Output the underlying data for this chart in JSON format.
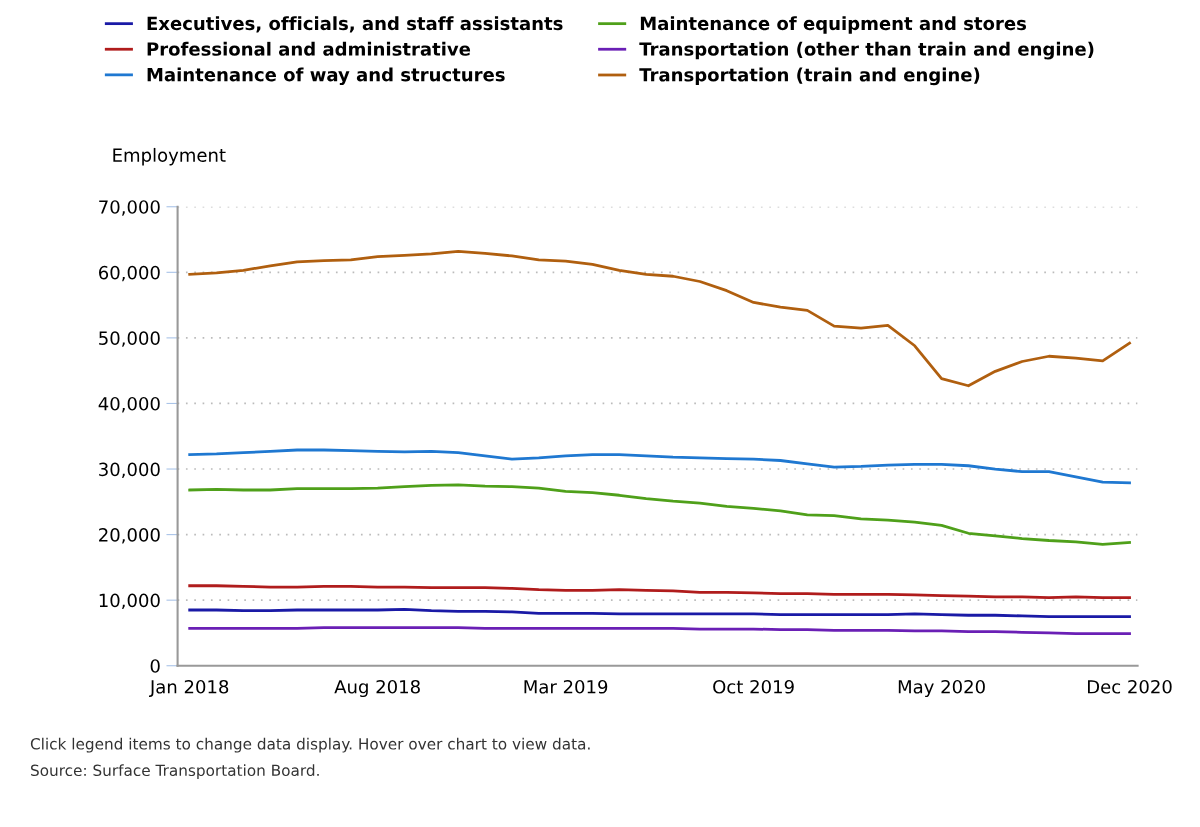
{
  "chart_data": {
    "type": "line",
    "ylabel": "Employment",
    "categories": [
      "Jan 2018",
      null,
      null,
      null,
      null,
      null,
      null,
      "Aug 2018",
      null,
      null,
      null,
      null,
      null,
      null,
      "Mar 2019",
      null,
      null,
      null,
      null,
      null,
      null,
      "Oct 2019",
      null,
      null,
      null,
      null,
      null,
      null,
      "May 2020",
      null,
      null,
      null,
      null,
      null,
      null,
      "Dec 2020"
    ],
    "series": [
      {
        "name": "Executives, officials, and staff assistants",
        "color": "#1a1aa6",
        "values": [
          8500,
          8500,
          8400,
          8400,
          8500,
          8500,
          8500,
          8500,
          8600,
          8400,
          8300,
          8300,
          8200,
          8000,
          8000,
          8000,
          7900,
          7900,
          7900,
          7900,
          7900,
          7900,
          7800,
          7800,
          7800,
          7800,
          7800,
          7900,
          7800,
          7700,
          7700,
          7600,
          7500,
          7500,
          7500,
          7500
        ]
      },
      {
        "name": "Professional and administrative",
        "color": "#b01c1c",
        "values": [
          12200,
          12200,
          12100,
          12000,
          12000,
          12100,
          12100,
          12000,
          12000,
          11900,
          11900,
          11900,
          11800,
          11600,
          11500,
          11500,
          11600,
          11500,
          11400,
          11200,
          11200,
          11100,
          11000,
          11000,
          10900,
          10900,
          10900,
          10800,
          10700,
          10600,
          10500,
          10500,
          10400,
          10500,
          10400,
          10400
        ]
      },
      {
        "name": "Maintenance of way and structures",
        "color": "#1f78d1",
        "values": [
          32200,
          32300,
          32500,
          32700,
          32900,
          32900,
          32800,
          32700,
          32600,
          32700,
          32500,
          32000,
          31500,
          31700,
          32000,
          32200,
          32200,
          32000,
          31800,
          31700,
          31600,
          31500,
          31300,
          30800,
          30300,
          30400,
          30600,
          30700,
          30700,
          30500,
          30000,
          29600,
          29600,
          28800,
          28000,
          27900
        ]
      },
      {
        "name": "Maintenance of equipment and stores",
        "color": "#4fa01a",
        "values": [
          26800,
          26900,
          26800,
          26800,
          27000,
          27000,
          27000,
          27100,
          27300,
          27500,
          27600,
          27400,
          27300,
          27100,
          26600,
          26400,
          26000,
          25500,
          25100,
          24800,
          24300,
          24000,
          23600,
          23000,
          22900,
          22400,
          22200,
          21900,
          21400,
          20200,
          19800,
          19400,
          19100,
          18900,
          18500,
          18800
        ]
      },
      {
        "name": "Transportation (other than train and engine)",
        "color": "#6a1fb5",
        "values": [
          5700,
          5700,
          5700,
          5700,
          5700,
          5800,
          5800,
          5800,
          5800,
          5800,
          5800,
          5700,
          5700,
          5700,
          5700,
          5700,
          5700,
          5700,
          5700,
          5600,
          5600,
          5600,
          5500,
          5500,
          5400,
          5400,
          5400,
          5300,
          5300,
          5200,
          5200,
          5100,
          5000,
          4900,
          4900,
          4900
        ]
      },
      {
        "name": "Transportation (train and engine)",
        "color": "#b05f0f",
        "values": [
          59700,
          59900,
          60300,
          61000,
          61600,
          61800,
          61900,
          62400,
          62600,
          62800,
          63200,
          62900,
          62500,
          61900,
          61700,
          61200,
          60300,
          59700,
          59400,
          58600,
          57200,
          55400,
          54700,
          54200,
          51800,
          51500,
          51900,
          48800,
          43800,
          42700,
          44900,
          46400,
          47200,
          46900,
          46500,
          49200
        ]
      }
    ],
    "ylim": [
      0,
      70000
    ],
    "yticks": [
      {
        "value": 0,
        "label": "0"
      },
      {
        "value": 10000,
        "label": "10,000"
      },
      {
        "value": 20000,
        "label": "20,000"
      },
      {
        "value": 30000,
        "label": "30,000"
      },
      {
        "value": 40000,
        "label": "40,000"
      },
      {
        "value": 50000,
        "label": "50,000"
      },
      {
        "value": 60000,
        "label": "60,000"
      },
      {
        "value": 70000,
        "label": "70,000"
      }
    ],
    "grid": "y",
    "legend": "top",
    "marker": "none",
    "line_style": "solid",
    "annotations": [
      "Click legend items to change data display. Hover over chart to view data.",
      "Source: Surface Transportation Board."
    ]
  }
}
